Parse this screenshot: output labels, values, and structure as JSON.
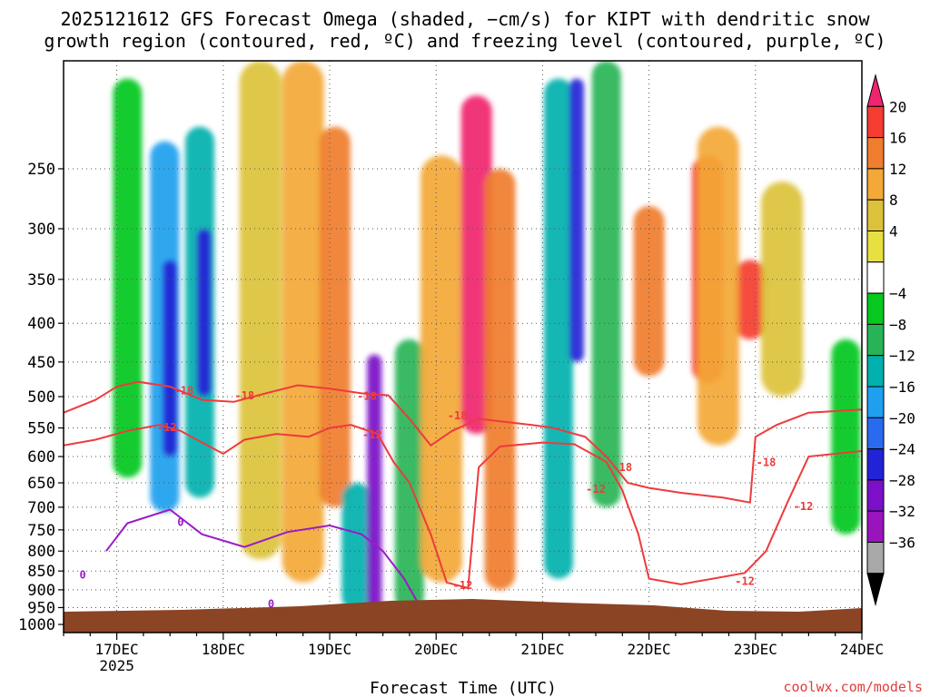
{
  "title_line1": "2025121612 GFS Forecast Omega (shaded, −cm/s) for KIPT with dendritic snow",
  "title_line2": "growth region (contoured, red, ºC) and freezing level (contoured, purple, ºC)",
  "watermark": "coolwx.com/models",
  "chart_data": {
    "type": "heatmap",
    "title": "2025121612 GFS Forecast Omega (shaded, −cm/s) for KIPT with dendritic snow growth region (contoured, red, ºC) and freezing level (contoured, purple, ºC)",
    "xlabel": "Forecast Time (UTC)",
    "ylabel": "",
    "x_range_days": [
      16.5,
      24.0
    ],
    "x_ticks": [
      {
        "day": 17,
        "label": "17DEC",
        "sub": "2025"
      },
      {
        "day": 18,
        "label": "18DEC",
        "sub": ""
      },
      {
        "day": 19,
        "label": "19DEC",
        "sub": ""
      },
      {
        "day": 20,
        "label": "20DEC",
        "sub": ""
      },
      {
        "day": 21,
        "label": "21DEC",
        "sub": ""
      },
      {
        "day": 22,
        "label": "22DEC",
        "sub": ""
      },
      {
        "day": 23,
        "label": "23DEC",
        "sub": ""
      },
      {
        "day": 24,
        "label": "24DEC",
        "sub": ""
      }
    ],
    "y_range_hpa": [
      1025,
      180
    ],
    "y_ticks": [
      250,
      300,
      350,
      400,
      450,
      500,
      550,
      600,
      650,
      700,
      750,
      800,
      850,
      900,
      950,
      1000
    ],
    "colorbar": {
      "labels": [
        "20",
        "16",
        "12",
        "8",
        "4",
        "−4",
        "−8",
        "−12",
        "−16",
        "−20",
        "−24",
        "−28",
        "−32",
        "−36"
      ],
      "colors": [
        "#f0246e",
        "#f43c32",
        "#ef7d2d",
        "#f3a837",
        "#dcc23a",
        "#e8df40",
        "#ffffff",
        "#06c81e",
        "#28b456",
        "#00b1ad",
        "#1ea0ee",
        "#2a6aee",
        "#2222d6",
        "#7a10c8",
        "#9a14be",
        "#a8a8a8",
        "#000000"
      ]
    },
    "shading": [
      {
        "day": 17.45,
        "p0": 230,
        "p1": 710,
        "level": -16
      },
      {
        "day": 17.5,
        "p0": 330,
        "p1": 600,
        "level": -24
      },
      {
        "day": 17.78,
        "p0": 220,
        "p1": 680,
        "level": -12
      },
      {
        "day": 17.82,
        "p0": 300,
        "p1": 500,
        "level": -24
      },
      {
        "day": 17.1,
        "p0": 190,
        "p1": 640,
        "level": -4
      },
      {
        "day": 18.35,
        "p0": 180,
        "p1": 820,
        "level": 4
      },
      {
        "day": 18.75,
        "p0": 180,
        "p1": 880,
        "level": 8
      },
      {
        "day": 19.05,
        "p0": 220,
        "p1": 700,
        "level": 12
      },
      {
        "day": 19.25,
        "p0": 650,
        "p1": 960,
        "level": -12
      },
      {
        "day": 19.42,
        "p0": 440,
        "p1": 960,
        "level": -28
      },
      {
        "day": 19.75,
        "p0": 420,
        "p1": 960,
        "level": -8
      },
      {
        "day": 20.05,
        "p0": 240,
        "p1": 880,
        "level": 8
      },
      {
        "day": 20.38,
        "p0": 200,
        "p1": 560,
        "level": 20
      },
      {
        "day": 20.6,
        "p0": 250,
        "p1": 900,
        "level": 12
      },
      {
        "day": 21.15,
        "p0": 190,
        "p1": 870,
        "level": -12
      },
      {
        "day": 21.32,
        "p0": 190,
        "p1": 450,
        "level": -24
      },
      {
        "day": 21.6,
        "p0": 180,
        "p1": 700,
        "level": -8
      },
      {
        "day": 22.0,
        "p0": 280,
        "p1": 470,
        "level": 12
      },
      {
        "day": 22.55,
        "p0": 240,
        "p1": 480,
        "level": 16
      },
      {
        "day": 22.95,
        "p0": 330,
        "p1": 420,
        "level": 16
      },
      {
        "day": 22.65,
        "p0": 220,
        "p1": 580,
        "level": 8
      },
      {
        "day": 23.25,
        "p0": 260,
        "p1": 500,
        "level": 4
      },
      {
        "day": 23.85,
        "p0": 420,
        "p1": 760,
        "level": -4
      }
    ],
    "contours": [
      {
        "name": "-18C isotherm",
        "color": "#ee3b3b",
        "label": "-18",
        "points": [
          [
            16.5,
            525
          ],
          [
            16.8,
            505
          ],
          [
            17.0,
            485
          ],
          [
            17.2,
            478
          ],
          [
            17.5,
            485
          ],
          [
            17.8,
            505
          ],
          [
            18.1,
            508
          ],
          [
            18.4,
            495
          ],
          [
            18.7,
            483
          ],
          [
            19.0,
            488
          ],
          [
            19.3,
            495
          ],
          [
            19.55,
            498
          ],
          [
            19.75,
            535
          ],
          [
            19.95,
            580
          ],
          [
            20.15,
            555
          ],
          [
            20.4,
            535
          ],
          [
            20.65,
            540
          ],
          [
            20.9,
            545
          ],
          [
            21.1,
            550
          ],
          [
            21.4,
            565
          ],
          [
            21.6,
            600
          ],
          [
            21.8,
            650
          ],
          [
            22.0,
            660
          ],
          [
            22.3,
            670
          ],
          [
            22.7,
            680
          ],
          [
            22.95,
            690
          ],
          [
            23.0,
            565
          ],
          [
            23.2,
            545
          ],
          [
            23.5,
            525
          ],
          [
            24.0,
            520
          ]
        ],
        "label_at": [
          [
            17.63,
            490
          ],
          [
            18.2,
            497
          ],
          [
            19.35,
            498
          ],
          [
            20.2,
            528
          ],
          [
            21.75,
            618
          ],
          [
            23.1,
            609
          ]
        ]
      },
      {
        "name": "-12C isotherm",
        "color": "#ee3b3b",
        "label": "-12",
        "points": [
          [
            16.5,
            580
          ],
          [
            16.8,
            570
          ],
          [
            17.1,
            555
          ],
          [
            17.4,
            545
          ],
          [
            17.6,
            555
          ],
          [
            17.8,
            575
          ],
          [
            18.0,
            595
          ],
          [
            18.2,
            570
          ],
          [
            18.5,
            560
          ],
          [
            18.8,
            565
          ],
          [
            19.0,
            550
          ],
          [
            19.2,
            545
          ],
          [
            19.45,
            560
          ],
          [
            19.6,
            610
          ],
          [
            19.75,
            650
          ],
          [
            19.95,
            760
          ],
          [
            20.1,
            880
          ],
          [
            20.3,
            895
          ],
          [
            20.4,
            620
          ],
          [
            20.6,
            582
          ],
          [
            21.0,
            575
          ],
          [
            21.3,
            578
          ],
          [
            21.6,
            610
          ],
          [
            21.75,
            665
          ],
          [
            21.9,
            760
          ],
          [
            22.0,
            870
          ],
          [
            22.3,
            885
          ],
          [
            22.6,
            870
          ],
          [
            22.9,
            855
          ],
          [
            23.1,
            800
          ],
          [
            23.3,
            690
          ],
          [
            23.5,
            600
          ],
          [
            24.0,
            590
          ]
        ],
        "label_at": [
          [
            17.47,
            548
          ],
          [
            19.4,
            560
          ],
          [
            20.25,
            886
          ],
          [
            21.5,
            661
          ],
          [
            22.9,
            874
          ],
          [
            23.45,
            696
          ]
        ]
      },
      {
        "name": "0C freezing level",
        "color": "#9b1bc8",
        "label": "0",
        "points": [
          [
            16.9,
            800
          ],
          [
            17.1,
            735
          ],
          [
            17.5,
            705
          ],
          [
            17.8,
            760
          ],
          [
            18.2,
            790
          ],
          [
            18.6,
            755
          ],
          [
            19.0,
            740
          ],
          [
            19.3,
            760
          ],
          [
            19.5,
            800
          ],
          [
            19.7,
            870
          ],
          [
            19.9,
            975
          ]
        ],
        "label_at": [
          [
            17.6,
            731
          ],
          [
            16.68,
            858
          ],
          [
            18.45,
            937
          ]
        ]
      }
    ]
  }
}
